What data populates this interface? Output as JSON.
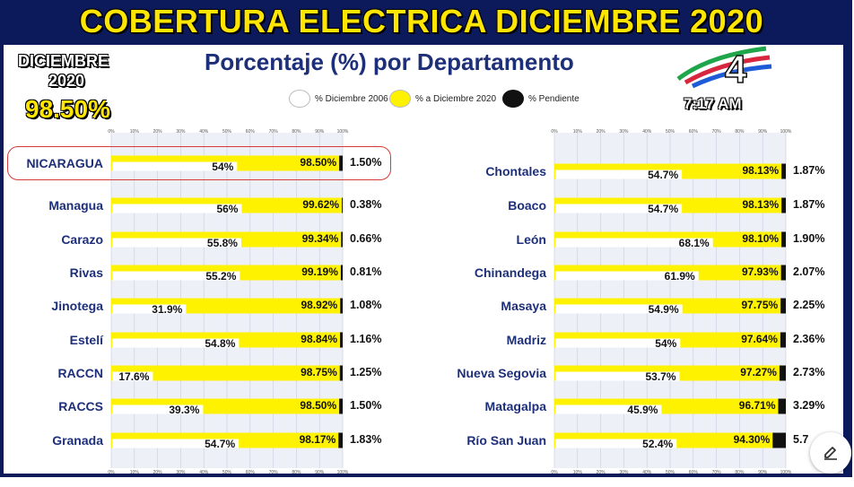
{
  "header": {
    "title": "COBERTURA ELECTRICA DICIEMBRE 2020",
    "subtitle": "Porcentaje (%) por Departamento",
    "badge_month": "DICIEMBRE",
    "badge_year": "2020",
    "badge_value": "98.50%",
    "clock": "7:17 AM",
    "logo_text": "4"
  },
  "legend": [
    {
      "label": "% Diciembre 2006",
      "color": "#ffffff"
    },
    {
      "label": "% a Diciembre 2020",
      "color": "#fff200"
    },
    {
      "label": "% Pendiente",
      "color": "#111111"
    }
  ],
  "colors": {
    "frame": "#0c1a5c",
    "baseline": "#ffffff",
    "progress": "#fff200",
    "pending": "#111111",
    "highlight": "#d63a3a"
  },
  "axis_ticks": [
    "0%",
    "10%",
    "20%",
    "30%",
    "40%",
    "50%",
    "60%",
    "70%",
    "80%",
    "90%",
    "100%"
  ],
  "chart_data": {
    "type": "bar",
    "xlim": [
      0,
      100
    ],
    "series_names": [
      "% Diciembre 2006",
      "% a Diciembre 2020",
      "% Pendiente"
    ],
    "left": [
      {
        "dept": "NICARAGUA",
        "v2006": 54,
        "l2006": "54%",
        "v2020": 98.5,
        "l2020": "98.50%",
        "pend": "1.50%",
        "highlight": true
      },
      {
        "dept": "Managua",
        "v2006": 56,
        "l2006": "56%",
        "v2020": 99.62,
        "l2020": "99.62%",
        "pend": "0.38%"
      },
      {
        "dept": "Carazo",
        "v2006": 55.8,
        "l2006": "55.8%",
        "v2020": 99.34,
        "l2020": "99.34%",
        "pend": "0.66%"
      },
      {
        "dept": "Rivas",
        "v2006": 55.2,
        "l2006": "55.2%",
        "v2020": 99.19,
        "l2020": "99.19%",
        "pend": "0.81%"
      },
      {
        "dept": "Jinotega",
        "v2006": 31.9,
        "l2006": "31.9%",
        "v2020": 98.92,
        "l2020": "98.92%",
        "pend": "1.08%"
      },
      {
        "dept": "Estelí",
        "v2006": 54.8,
        "l2006": "54.8%",
        "v2020": 98.84,
        "l2020": "98.84%",
        "pend": "1.16%"
      },
      {
        "dept": "RACCN",
        "v2006": 17.6,
        "l2006": "17.6%",
        "v2020": 98.75,
        "l2020": "98.75%",
        "pend": "1.25%"
      },
      {
        "dept": "RACCS",
        "v2006": 39.3,
        "l2006": "39.3%",
        "v2020": 98.5,
        "l2020": "98.50%",
        "pend": "1.50%"
      },
      {
        "dept": "Granada",
        "v2006": 54.7,
        "l2006": "54.7%",
        "v2020": 98.17,
        "l2020": "98.17%",
        "pend": "1.83%"
      }
    ],
    "right": [
      {
        "dept": "Chontales",
        "v2006": 54.7,
        "l2006": "54.7%",
        "v2020": 98.13,
        "l2020": "98.13%",
        "pend": "1.87%"
      },
      {
        "dept": "Boaco",
        "v2006": 54.7,
        "l2006": "54.7%",
        "v2020": 98.13,
        "l2020": "98.13%",
        "pend": "1.87%"
      },
      {
        "dept": "León",
        "v2006": 68.1,
        "l2006": "68.1%",
        "v2020": 98.1,
        "l2020": "98.10%",
        "pend": "1.90%"
      },
      {
        "dept": "Chinandega",
        "v2006": 61.9,
        "l2006": "61.9%",
        "v2020": 97.93,
        "l2020": "97.93%",
        "pend": "2.07%"
      },
      {
        "dept": "Masaya",
        "v2006": 54.9,
        "l2006": "54.9%",
        "v2020": 97.75,
        "l2020": "97.75%",
        "pend": "2.25%"
      },
      {
        "dept": "Madriz",
        "v2006": 54,
        "l2006": "54%",
        "v2020": 97.64,
        "l2020": "97.64%",
        "pend": "2.36%"
      },
      {
        "dept": "Nueva Segovia",
        "v2006": 53.7,
        "l2006": "53.7%",
        "v2020": 97.27,
        "l2020": "97.27%",
        "pend": "2.73%"
      },
      {
        "dept": "Matagalpa",
        "v2006": 45.9,
        "l2006": "45.9%",
        "v2020": 96.71,
        "l2020": "96.71%",
        "pend": "3.29%"
      },
      {
        "dept": "Río San Juan",
        "v2006": 52.4,
        "l2006": "52.4%",
        "v2020": 94.3,
        "l2020": "94.30%",
        "pend": "5.7"
      }
    ]
  }
}
